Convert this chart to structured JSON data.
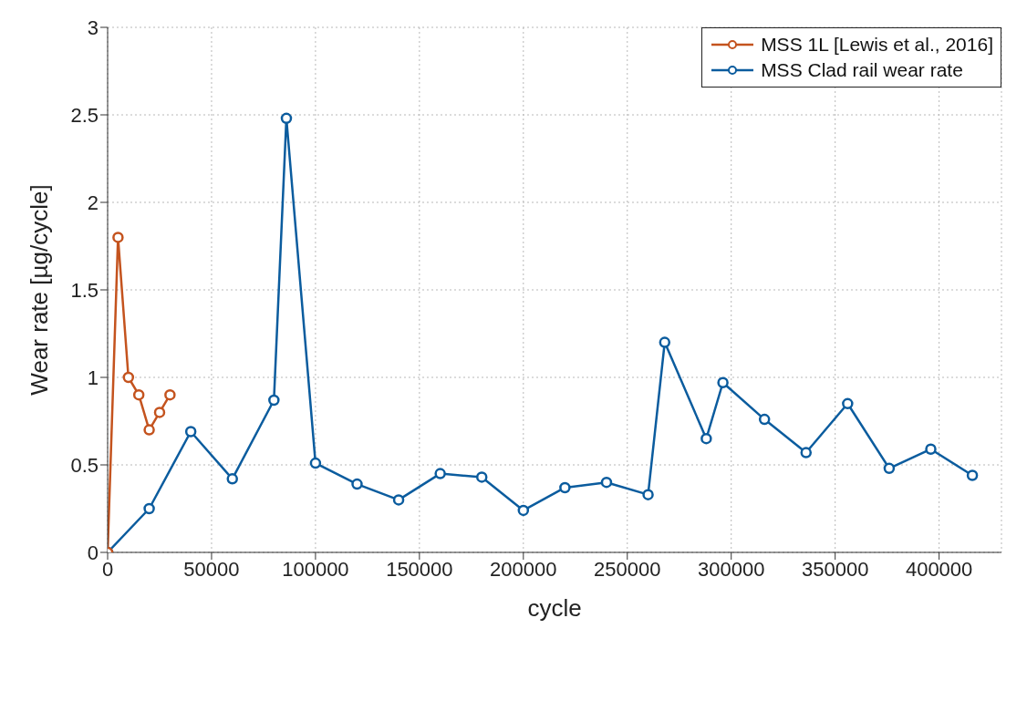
{
  "chart_data": {
    "type": "line",
    "xlabel": "cycle",
    "ylabel": "Wear rate [µg/cycle]",
    "xlim": [
      0,
      430000
    ],
    "xticks": [
      0,
      50000,
      100000,
      150000,
      200000,
      250000,
      300000,
      350000,
      400000
    ],
    "ylim": [
      0,
      3
    ],
    "yticks": [
      0,
      0.5,
      1,
      1.5,
      2,
      2.5,
      3
    ],
    "grid": true,
    "legend": "top right",
    "marker": "circle",
    "line_style": "solid",
    "series": [
      {
        "name": "MSS Clad rail wear rate",
        "color": "#0b5c9e",
        "x": [
          0,
          20000,
          40000,
          60000,
          80000,
          86000,
          100000,
          120000,
          140000,
          160000,
          180000,
          200000,
          220000,
          240000,
          260000,
          268000,
          288000,
          296000,
          316000,
          336000,
          356000,
          376000,
          396000,
          416000
        ],
        "values": [
          0,
          0.25,
          0.69,
          0.42,
          0.87,
          2.48,
          0.51,
          0.39,
          0.3,
          0.45,
          0.43,
          0.24,
          0.37,
          0.4,
          0.33,
          1.2,
          0.65,
          0.97,
          0.76,
          0.57,
          0.85,
          0.48,
          0.59,
          0.44
        ]
      },
      {
        "name": "MSS 1L [Lewis et al., 2016]",
        "color": "#c4531e",
        "x": [
          0,
          5000,
          10000,
          15000,
          20000,
          25000,
          30000
        ],
        "values": [
          0,
          1.8,
          1.0,
          0.9,
          0.7,
          0.8,
          0.9
        ]
      }
    ]
  }
}
